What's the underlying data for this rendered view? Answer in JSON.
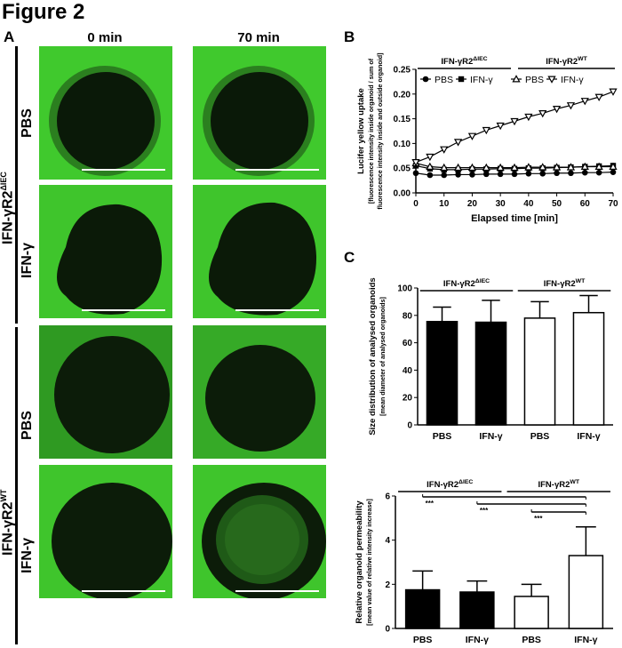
{
  "figure_title": "Figure 2",
  "panels": {
    "a": {
      "letter": "A",
      "col_headers": [
        "0 min",
        "70 min"
      ],
      "group_labels": [
        "IFN-γR2ΔIEC",
        "IFN-γR2WT"
      ],
      "row_labels": [
        "PBS",
        "IFN-γ",
        "PBS",
        "IFN-γ"
      ],
      "colors": {
        "background": "#3fca2c",
        "organoid": "#0b1a08",
        "scalebar": "#ffffff"
      }
    },
    "b": {
      "letter": "B"
    },
    "c": {
      "letter": "C"
    }
  },
  "chart_data": [
    {
      "type": "line",
      "title": "",
      "xlabel": "Elapsed time  [min]",
      "ylabel": "Lucifer yellow uptake",
      "ylabel_sub1": "[fluorescence intensity inside organoid / sum of",
      "ylabel_sub2": "fluorescence intensity inside and outside organoid]",
      "xlim": [
        0,
        70
      ],
      "ylim": [
        0,
        0.25
      ],
      "xticks": [
        0,
        10,
        20,
        30,
        40,
        50,
        60,
        70
      ],
      "yticks": [
        0,
        0.05,
        0.1,
        0.15,
        0.2,
        0.25
      ],
      "ytick_labels": [
        "0.00",
        "0.05",
        "0.10",
        "0.15",
        "0.20",
        "0.25"
      ],
      "groups": [
        "IFN-γR2ΔIEC",
        "IFN-γR2WT"
      ],
      "x": [
        0,
        5,
        10,
        15,
        20,
        25,
        30,
        35,
        40,
        45,
        50,
        55,
        60,
        65,
        70
      ],
      "series": [
        {
          "name": "PBS",
          "group": 0,
          "marker": "circle",
          "values": [
            0.04,
            0.036,
            0.036,
            0.037,
            0.037,
            0.038,
            0.038,
            0.038,
            0.039,
            0.039,
            0.04,
            0.04,
            0.041,
            0.041,
            0.042
          ]
        },
        {
          "name": "IFN-γ",
          "group": 0,
          "marker": "square",
          "values": [
            0.055,
            0.049,
            0.047,
            0.047,
            0.048,
            0.048,
            0.049,
            0.049,
            0.05,
            0.05,
            0.051,
            0.052,
            0.053,
            0.054,
            0.055
          ]
        },
        {
          "name": "PBS",
          "group": 1,
          "marker": "triangle-up",
          "values": [
            0.06,
            0.053,
            0.051,
            0.051,
            0.051,
            0.051,
            0.051,
            0.051,
            0.052,
            0.052,
            0.052,
            0.052,
            0.053,
            0.053,
            0.053
          ]
        },
        {
          "name": "IFN-γ",
          "group": 1,
          "marker": "triangle-down",
          "values": [
            0.062,
            0.073,
            0.088,
            0.103,
            0.115,
            0.127,
            0.136,
            0.145,
            0.154,
            0.161,
            0.17,
            0.177,
            0.186,
            0.194,
            0.205
          ]
        }
      ]
    },
    {
      "type": "bar",
      "title": "",
      "xlabel": "",
      "ylabel": "Size distribution of analysed organoids",
      "ylabel_sub": "[mean diameter of analysed organoids]",
      "ylim": [
        0,
        100
      ],
      "yticks": [
        0,
        20,
        40,
        60,
        80,
        100
      ],
      "categories": [
        "PBS",
        "IFN-γ",
        "PBS",
        "IFN-γ"
      ],
      "values": [
        75.5,
        75,
        78,
        82
      ],
      "errors": [
        10.5,
        16,
        12,
        12.5
      ],
      "fills": [
        "#000000",
        "#000000",
        "#ffffff",
        "#ffffff"
      ],
      "groups": [
        {
          "label": "IFN-γR2ΔIEC",
          "from": 0,
          "to": 1
        },
        {
          "label": "IFN-γR2WT",
          "from": 2,
          "to": 3
        }
      ]
    },
    {
      "type": "bar",
      "title": "",
      "xlabel": "",
      "ylabel": "Relative organoid permeability",
      "ylabel_sub": "[mean value of relative intensity increase]",
      "ylim": [
        0,
        6
      ],
      "yticks": [
        0,
        2,
        4,
        6
      ],
      "categories": [
        "PBS",
        "IFN-γ",
        "PBS",
        "IFN-γ"
      ],
      "values": [
        1.75,
        1.65,
        1.45,
        3.3
      ],
      "errors": [
        0.85,
        0.5,
        0.55,
        1.3
      ],
      "fills": [
        "#000000",
        "#000000",
        "#ffffff",
        "#ffffff"
      ],
      "groups": [
        {
          "label": "IFN-γR2ΔIEC",
          "from": 0,
          "to": 1
        },
        {
          "label": "IFN-γR2WT",
          "from": 2,
          "to": 3
        }
      ],
      "significance": [
        {
          "from": 0,
          "to": 3,
          "label": "***"
        },
        {
          "from": 1,
          "to": 3,
          "label": "***"
        },
        {
          "from": 2,
          "to": 3,
          "label": "***"
        }
      ]
    }
  ]
}
